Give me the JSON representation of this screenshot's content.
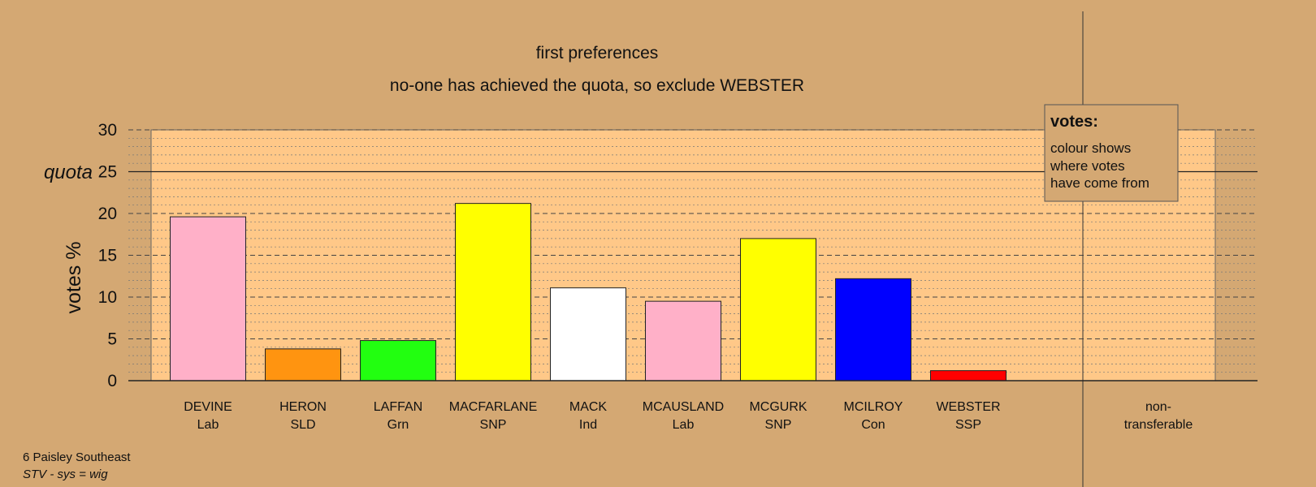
{
  "chart_data": {
    "type": "bar",
    "title": "first preferences",
    "subtitle": "no-one has achieved the quota, so exclude WEBSTER",
    "ylabel": "votes %",
    "ylim": [
      0,
      30
    ],
    "yticks": [
      "0",
      "5",
      "10",
      "15",
      "20",
      "25",
      "30"
    ],
    "quota_label": "quota",
    "quota_value": 25,
    "grid": true,
    "categories": [
      {
        "name": "DEVINE",
        "party": "Lab",
        "value": 19.6,
        "color": "#ffb0c8"
      },
      {
        "name": "HERON",
        "party": "SLD",
        "value": 3.8,
        "color": "#ff9410"
      },
      {
        "name": "LAFFAN",
        "party": "Grn",
        "value": 4.8,
        "color": "#22ff10"
      },
      {
        "name": "MACFARLANE",
        "party": "SNP",
        "value": 21.2,
        "color": "#ffff00"
      },
      {
        "name": "MACK",
        "party": "Ind",
        "value": 11.1,
        "color": "#ffffff"
      },
      {
        "name": "MCAUSLAND",
        "party": "Lab",
        "value": 9.5,
        "color": "#ffb0c8"
      },
      {
        "name": "MCGURK",
        "party": "SNP",
        "value": 17.0,
        "color": "#ffff00"
      },
      {
        "name": "MCILROY",
        "party": "Con",
        "value": 12.2,
        "color": "#0000ff"
      },
      {
        "name": "WEBSTER",
        "party": "SSP",
        "value": 1.2,
        "color": "#ff0000"
      }
    ],
    "nontransferable": {
      "label_line1": "non-",
      "label_line2": "transferable",
      "value": 0
    }
  },
  "legend": {
    "title": "votes:",
    "lines": [
      "colour shows",
      "where votes",
      "have come from"
    ],
    "placement": "top-right"
  },
  "footer": {
    "ward": "6 Paisley Southeast",
    "system": "STV - sys = wig"
  },
  "colors": {
    "background": "#d4a873",
    "plot_area": "#ffc888"
  }
}
